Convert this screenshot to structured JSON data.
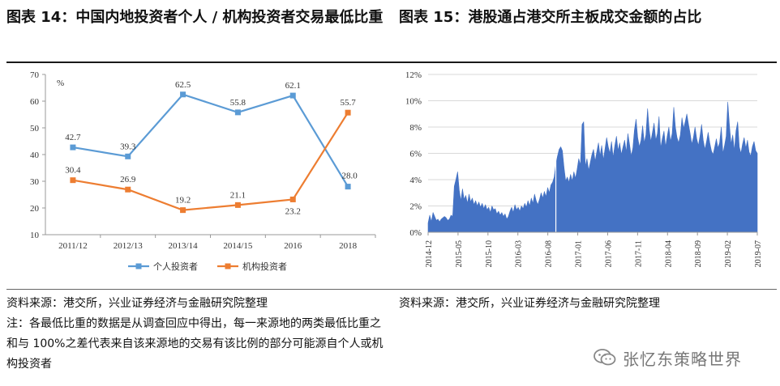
{
  "left_title": "图表 14：中国内地投资者个人 / 机构投资者交易最低比重",
  "right_title": "图表 15：港股通占港交所主板成交金额的占比",
  "left_source": "资料来源：港交所，兴业证券经济与金融研究院整理",
  "left_note": "注：各最低比重的数据是从调查回应中得出，每一来源地的两类最低比重之和与 100%之差代表来自该来源地的交易有该比例的部分可能源自个人或机构投资者",
  "right_source": "资料来源：港交所，兴业证券经济与金融研究院整理",
  "watermark": "张忆东策略世界",
  "colors": {
    "individual": "#5b9bd5",
    "institution": "#ed7d31",
    "area": "#4472c4"
  },
  "chart_data": [
    {
      "type": "line",
      "title": "",
      "ylabel": "%",
      "ylim": [
        10,
        70
      ],
      "yticks": [
        "10",
        "20",
        "30",
        "40",
        "50",
        "60",
        "70"
      ],
      "categories": [
        "2011/12",
        "2012/13",
        "2013/14",
        "2014/15",
        "2016",
        "2018"
      ],
      "series": [
        {
          "name": "个人投资者",
          "values": [
            42.7,
            39.3,
            62.5,
            55.8,
            62.1,
            28.0
          ],
          "labels": [
            "42.7",
            "39.3",
            "62.5",
            "55.8",
            "62.1",
            "28.0"
          ]
        },
        {
          "name": "机构投资者",
          "values": [
            30.4,
            26.9,
            19.2,
            21.1,
            23.2,
            55.7
          ],
          "labels": [
            "30.4",
            "26.9",
            "19.2",
            "21.1",
            "23.2",
            "55.7"
          ]
        }
      ],
      "legend": "bottom",
      "grid": false
    },
    {
      "type": "area",
      "ylim": [
        0,
        12
      ],
      "yticks": [
        "0%",
        "2%",
        "4%",
        "6%",
        "8%",
        "10%",
        "12%"
      ],
      "xticks": [
        "2014-12",
        "2015-05",
        "2015-10",
        "2016-03",
        "2016-08",
        "2017-01",
        "2017-06",
        "2017-11",
        "2018-04",
        "2018-09",
        "2019-02",
        "2019-07"
      ],
      "series_name": "港股通占主板成交金额比例",
      "values": [
        0.7,
        1.3,
        0.8,
        1.5,
        1.2,
        0.9,
        1.0,
        0.8,
        1.0,
        1.1,
        1.2,
        1.1,
        0.9,
        1.0,
        1.3,
        1.2,
        3.5,
        4.0,
        4.6,
        3.2,
        2.4,
        3.3,
        2.5,
        2.8,
        2.2,
        2.9,
        2.3,
        2.6,
        2.1,
        2.4,
        2.0,
        2.3,
        1.9,
        2.2,
        1.8,
        2.1,
        1.7,
        1.9,
        1.5,
        2.0,
        1.7,
        1.8,
        1.4,
        1.6,
        1.3,
        1.5,
        1.2,
        1.4,
        1.0,
        1.2,
        1.6,
        1.9,
        1.5,
        2.1,
        1.7,
        1.9,
        1.6,
        2.0,
        1.8,
        2.2,
        1.9,
        2.4,
        2.0,
        2.6,
        2.2,
        2.9,
        2.4,
        2.1,
        2.5,
        3.0,
        2.6,
        3.1,
        2.7,
        3.4,
        3.0,
        3.6,
        3.8,
        4.2,
        5.2,
        5.8,
        6.3,
        6.5,
        6.2,
        4.9,
        3.9,
        4.2,
        3.8,
        4.4,
        3.9,
        4.6,
        4.1,
        4.8,
        5.6,
        5.1,
        8.2,
        8.4,
        5.0,
        5.6,
        4.7,
        5.3,
        5.9,
        6.3,
        5.4,
        6.1,
        6.8,
        5.8,
        6.6,
        5.5,
        6.3,
        7.2,
        6.5,
        6.0,
        6.9,
        5.7,
        6.6,
        7.3,
        6.2,
        6.8,
        5.9,
        6.5,
        7.0,
        6.1,
        7.5,
        6.7,
        5.8,
        6.4,
        7.8,
        8.6,
        7.2,
        6.5,
        7.0,
        8.1,
        6.8,
        7.4,
        9.4,
        7.8,
        6.9,
        7.6,
        8.3,
        7.0,
        7.5,
        8.8,
        6.4,
        7.1,
        7.7,
        6.5,
        7.3,
        8.0,
        6.9,
        7.5,
        9.5,
        8.0,
        7.2,
        6.8,
        7.4,
        8.7,
        7.9,
        8.4,
        9.0,
        8.2,
        7.5,
        6.7,
        7.2,
        8.0,
        7.1,
        6.6,
        7.3,
        8.2,
        7.0,
        6.3,
        6.9,
        7.6,
        6.8,
        6.2,
        5.9,
        6.5,
        7.1,
        6.4,
        6.8,
        8.0,
        6.0,
        6.6,
        7.3,
        9.9,
        8.1,
        6.7,
        7.4,
        6.2,
        7.7,
        8.4,
        6.5,
        6.0,
        6.7,
        7.2,
        6.4,
        7.0,
        6.1,
        5.8,
        6.5,
        6.9,
        6.2,
        6.0
      ]
    }
  ]
}
